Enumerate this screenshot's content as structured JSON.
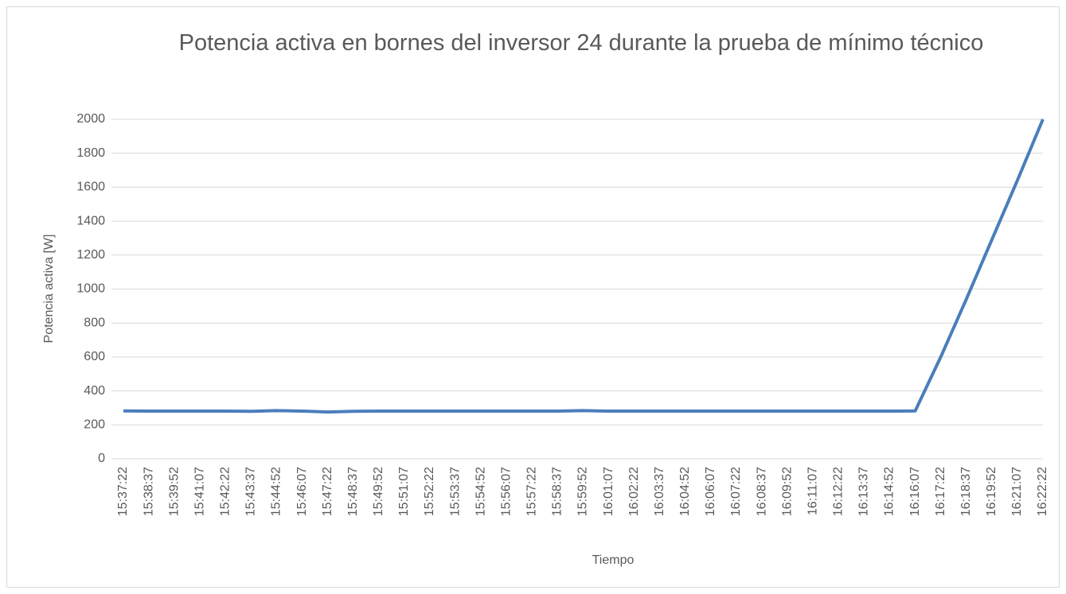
{
  "chart_data": {
    "type": "line",
    "title": "Potencia activa en bornes del inversor 24 durante la prueba de mínimo técnico",
    "x_label": "Tiempo",
    "y_label": "Potencia activa [W]",
    "categories": [
      "15:37:22",
      "15:38:37",
      "15:39:52",
      "15:41:07",
      "15:42:22",
      "15:43:37",
      "15:44:52",
      "15:46:07",
      "15:47:22",
      "15:48:37",
      "15:49:52",
      "15:51:07",
      "15:52:22",
      "15:53:37",
      "15:54:52",
      "15:56:07",
      "15:57:22",
      "15:58:37",
      "15:59:52",
      "16:01:07",
      "16:02:22",
      "16:03:37",
      "16:04:52",
      "16:06:07",
      "16:07:22",
      "16:08:37",
      "16:09:52",
      "16:11:07",
      "16:12:22",
      "16:13:37",
      "16:14:52",
      "16:16:07",
      "16:17:22",
      "16:18:37",
      "16:19:52",
      "16:21:07",
      "16:22:22"
    ],
    "values": [
      282,
      281,
      281,
      281,
      281,
      280,
      284,
      281,
      276,
      280,
      281,
      281,
      281,
      281,
      281,
      281,
      281,
      281,
      284,
      281,
      281,
      281,
      281,
      281,
      281,
      281,
      281,
      281,
      281,
      281,
      281,
      282,
      600,
      940,
      1290,
      1640,
      2000
    ],
    "color": "#4a7ebb",
    "ylim": [
      0,
      2000
    ],
    "yticks": [
      0,
      200,
      400,
      600,
      800,
      1000,
      1200,
      1400,
      1600,
      1800,
      2000
    ],
    "grid": true
  }
}
